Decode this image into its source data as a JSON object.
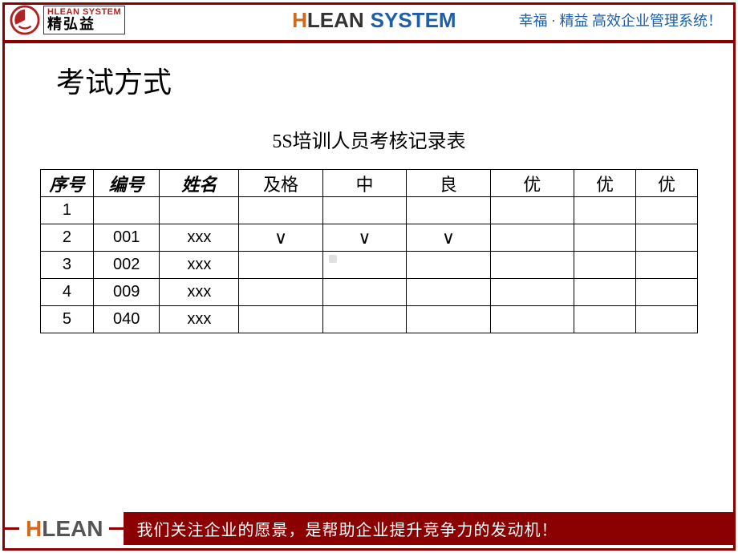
{
  "header": {
    "logo_en": "HLEAN SYSTEM",
    "logo_cn": "精弘益",
    "brand_h": "H",
    "brand_lean": "LEAN",
    "brand_system": "SYSTEM",
    "tagline": "幸福 · 精益  高效企业管理系统！"
  },
  "page": {
    "title": "考试方式",
    "table_title": "5S培训人员考核记录表"
  },
  "table": {
    "columns": [
      "序号",
      "编号",
      "姓名",
      "及格",
      "中",
      "良",
      "优",
      "优",
      "优"
    ],
    "column_italic": [
      true,
      true,
      true,
      false,
      false,
      false,
      false,
      false,
      false
    ],
    "rows": [
      {
        "seq": "1",
        "id": "",
        "name": "",
        "grades": [
          "",
          "",
          "",
          "",
          "",
          ""
        ]
      },
      {
        "seq": "2",
        "id": "001",
        "name": "xxx",
        "grades": [
          "∨",
          "∨",
          "∨",
          "",
          "",
          ""
        ]
      },
      {
        "seq": "3",
        "id": "002",
        "name": "xxx",
        "grades": [
          "",
          "",
          "",
          "",
          "",
          ""
        ]
      },
      {
        "seq": "4",
        "id": "009",
        "name": "xxx",
        "grades": [
          "",
          "",
          "",
          "",
          "",
          ""
        ]
      },
      {
        "seq": "5",
        "id": "040",
        "name": "xxx",
        "grades": [
          "",
          "",
          "",
          "",
          "",
          ""
        ]
      }
    ]
  },
  "footer": {
    "brand_h": "H",
    "brand_lean": "LEAN",
    "slogan": "我们关注企业的愿景，是帮助企业提升竞争力的发动机！"
  },
  "colors": {
    "dark_red": "#8b0000",
    "orange": "#d2691e",
    "blue": "#1e5fa8",
    "logo_red": "#b22222"
  }
}
